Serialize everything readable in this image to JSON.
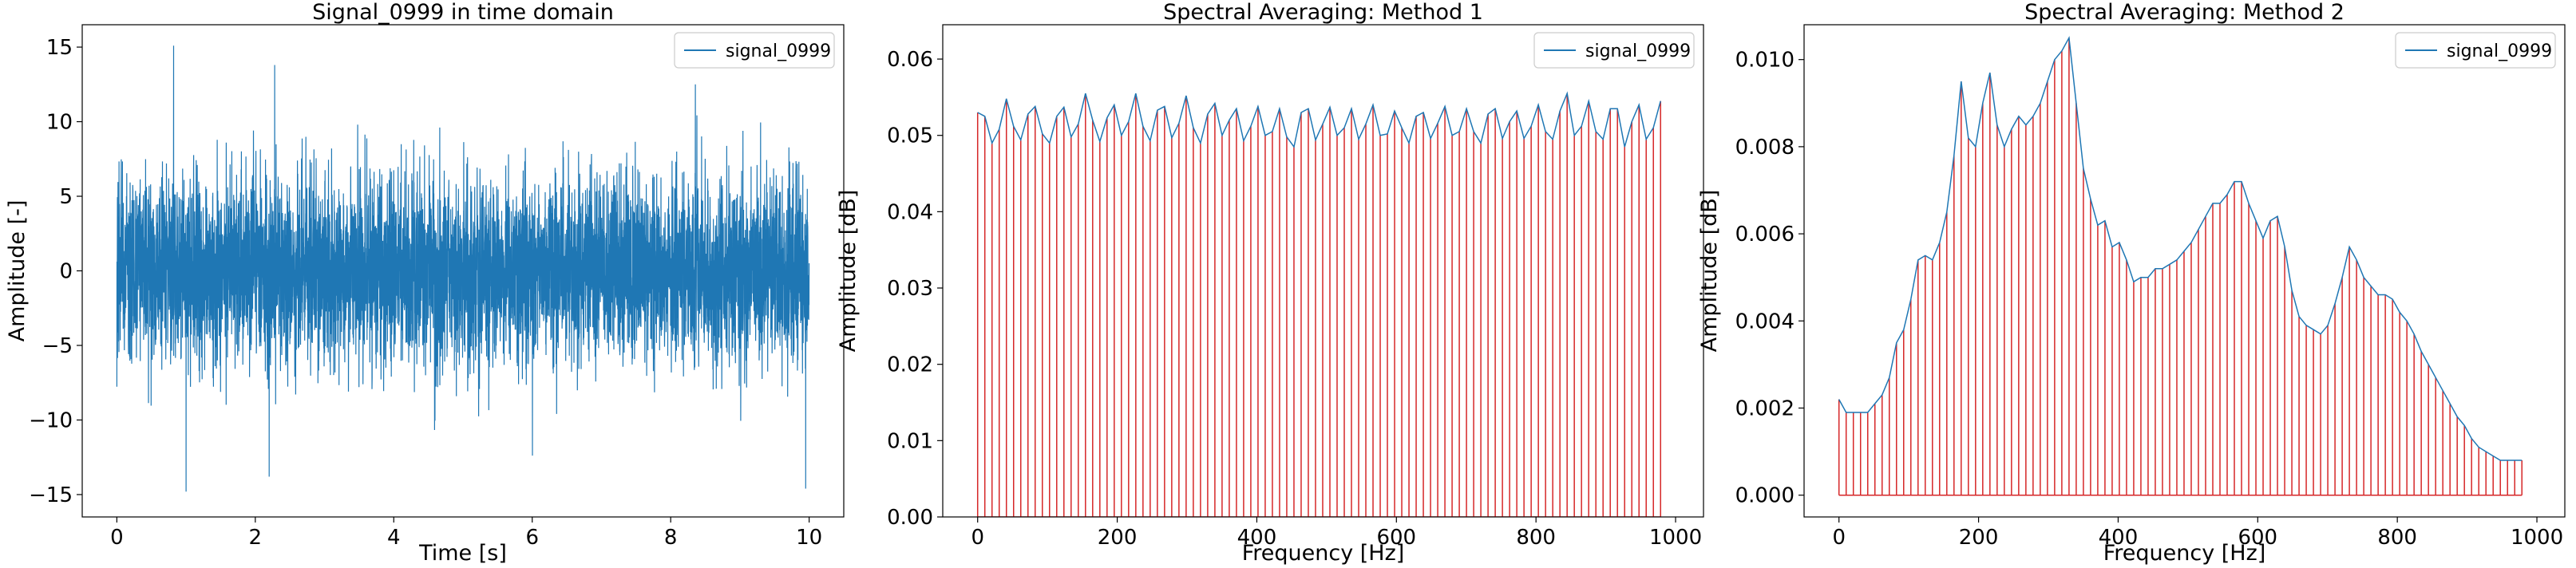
{
  "chart_data": [
    {
      "type": "line",
      "title": "Signal_0999 in time domain",
      "xlabel": "Time [s]",
      "ylabel": "Amplitude [-]",
      "xlim": [
        -0.5,
        10.5
      ],
      "ylim": [
        -16.5,
        16.5
      ],
      "xticks": [
        0,
        2,
        4,
        6,
        8,
        10
      ],
      "yticks": [
        -15,
        -10,
        -5,
        0,
        5,
        10,
        15
      ],
      "grid": false,
      "legend": "top-right",
      "series": [
        {
          "name": "signal_0999",
          "color": "#1f77b4",
          "x_start": 0,
          "x_end": 10,
          "rms": 3.0,
          "notable_peaks": [
            {
              "x": 0.82,
              "y": 15.1
            },
            {
              "x": 1.0,
              "y": -14.8
            },
            {
              "x": 2.2,
              "y": -13.8
            },
            {
              "x": 2.28,
              "y": 13.8
            },
            {
              "x": 9.95,
              "y": -14.6
            }
          ]
        }
      ]
    },
    {
      "type": "line",
      "title": "Spectral Averaging: Method 1",
      "xlabel": "Frequency [Hz]",
      "ylabel": "Amplitude [dB]",
      "xlim": [
        -50,
        1040
      ],
      "ylim": [
        0,
        0.0645
      ],
      "xticks": [
        0,
        200,
        400,
        600,
        800,
        1000
      ],
      "yticks": [
        0.0,
        0.01,
        0.02,
        0.03,
        0.04,
        0.05,
        0.06
      ],
      "grid": false,
      "legend": "top-right",
      "stem_color": "#d62728",
      "x_start": 0,
      "x_step": 10.3,
      "series": [
        {
          "name": "signal_0999",
          "color": "#1f77b4",
          "values": [
            0.053,
            0.0525,
            0.049,
            0.0508,
            0.0548,
            0.0512,
            0.0494,
            0.0528,
            0.0538,
            0.0502,
            0.049,
            0.0525,
            0.0537,
            0.0498,
            0.0515,
            0.0555,
            0.052,
            0.0492,
            0.0523,
            0.054,
            0.05,
            0.0518,
            0.0555,
            0.0512,
            0.0493,
            0.0533,
            0.0538,
            0.0497,
            0.0516,
            0.0552,
            0.051,
            0.049,
            0.0528,
            0.0542,
            0.05,
            0.052,
            0.0535,
            0.0493,
            0.0512,
            0.0538,
            0.05,
            0.0505,
            0.0535,
            0.0498,
            0.0485,
            0.053,
            0.0535,
            0.0494,
            0.0515,
            0.0537,
            0.05,
            0.051,
            0.0535,
            0.0495,
            0.0515,
            0.054,
            0.05,
            0.0502,
            0.0532,
            0.051,
            0.049,
            0.0525,
            0.053,
            0.0496,
            0.0516,
            0.0538,
            0.05,
            0.0505,
            0.0535,
            0.0505,
            0.049,
            0.0528,
            0.0535,
            0.0496,
            0.0518,
            0.0532,
            0.0496,
            0.0512,
            0.054,
            0.0505,
            0.0495,
            0.0532,
            0.0555,
            0.05,
            0.0512,
            0.0545,
            0.0505,
            0.0495,
            0.0535,
            0.0535,
            0.0485,
            0.0518,
            0.054,
            0.0495,
            0.051,
            0.0545
          ]
        }
      ]
    },
    {
      "type": "line",
      "title": "Spectral Averaging: Method 2",
      "xlabel": "Frequency [Hz]",
      "ylabel": "Amplitude [dB]",
      "xlim": [
        -50,
        1040
      ],
      "ylim": [
        -0.0005,
        0.0108
      ],
      "xticks": [
        0,
        200,
        400,
        600,
        800,
        1000
      ],
      "yticks": [
        0.0,
        0.002,
        0.004,
        0.006,
        0.008,
        0.01
      ],
      "grid": false,
      "legend": "top-right",
      "stem_color": "#d62728",
      "x_start": 0,
      "x_step": 10.3,
      "series": [
        {
          "name": "signal_0999",
          "color": "#1f77b4",
          "values": [
            0.0022,
            0.0019,
            0.0019,
            0.0019,
            0.0019,
            0.0021,
            0.0023,
            0.0027,
            0.0035,
            0.0038,
            0.0045,
            0.0054,
            0.0055,
            0.0054,
            0.0058,
            0.0065,
            0.0078,
            0.0095,
            0.0082,
            0.008,
            0.009,
            0.0097,
            0.0085,
            0.008,
            0.0084,
            0.0087,
            0.0085,
            0.0087,
            0.009,
            0.0095,
            0.01,
            0.0102,
            0.0105,
            0.009,
            0.0075,
            0.0068,
            0.0062,
            0.0063,
            0.0057,
            0.0058,
            0.0054,
            0.0049,
            0.005,
            0.005,
            0.0052,
            0.0052,
            0.0053,
            0.0054,
            0.0056,
            0.0058,
            0.0061,
            0.0064,
            0.0067,
            0.0067,
            0.0069,
            0.0072,
            0.0072,
            0.0067,
            0.0063,
            0.0059,
            0.0063,
            0.0064,
            0.0057,
            0.0047,
            0.0041,
            0.0039,
            0.0038,
            0.0037,
            0.0039,
            0.0044,
            0.005,
            0.0057,
            0.0054,
            0.005,
            0.0048,
            0.0046,
            0.0046,
            0.0045,
            0.0042,
            0.004,
            0.0037,
            0.0033,
            0.003,
            0.0027,
            0.0024,
            0.0021,
            0.0018,
            0.0016,
            0.0013,
            0.0011,
            0.001,
            0.0009,
            0.0008,
            0.0008,
            0.0008,
            0.0008
          ]
        }
      ]
    }
  ]
}
